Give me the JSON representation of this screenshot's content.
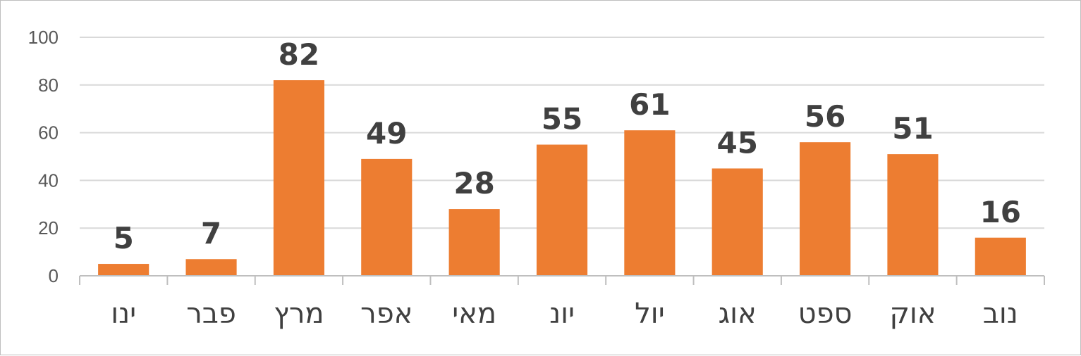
{
  "chart_data": {
    "type": "bar",
    "categories": [
      "ינו",
      "פבר",
      "מרץ",
      "אפר",
      "מאי",
      "יונ",
      "יול",
      "אוג",
      "ספט",
      "אוק",
      "נוב"
    ],
    "values": [
      5,
      7,
      82,
      49,
      28,
      55,
      61,
      45,
      56,
      51,
      16
    ],
    "data_labels": [
      "5",
      "7",
      "82",
      "49",
      "28",
      "55",
      "61",
      "45",
      "56",
      "51",
      "16"
    ],
    "y_ticks": [
      "0",
      "20",
      "40",
      "60",
      "80",
      "100"
    ],
    "ylim": [
      0,
      100
    ],
    "grid": true,
    "legend": "none",
    "colors": {
      "bar": "#ED7D31",
      "grid": "#D9D9D9",
      "axis": "#BFBFBF",
      "text": "#404040"
    }
  }
}
